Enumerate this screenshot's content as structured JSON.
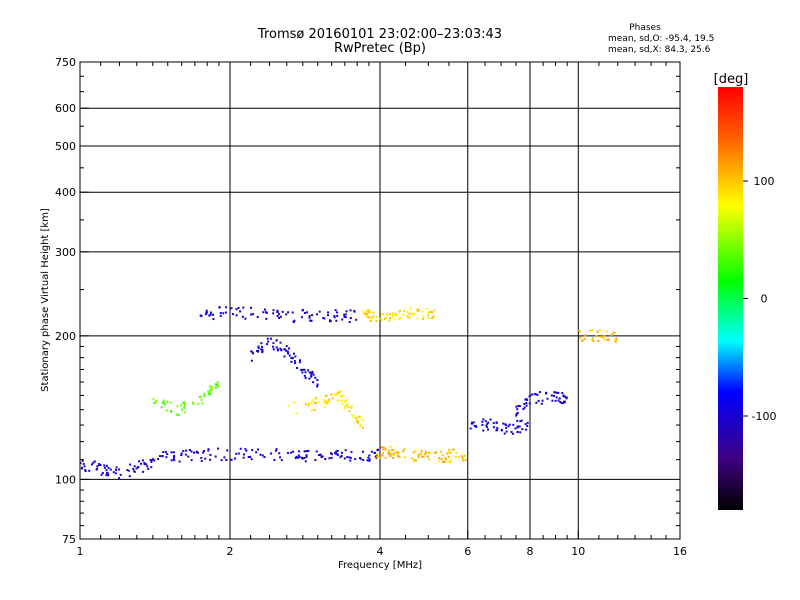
{
  "chart_data": {
    "type": "scatter",
    "title": "Tromsø 20160101 23:02:00–23:03:43",
    "subtitle": "RwPretec (Bp)",
    "xlabel": "Frequency [MHz]",
    "ylabel": "Stationary phase Virtual Height [km]",
    "x_scale": "log",
    "y_scale": "log",
    "xlim": [
      1,
      16
    ],
    "ylim": [
      75,
      750
    ],
    "x_ticks": [
      1,
      2,
      4,
      6,
      8,
      10,
      16
    ],
    "y_ticks": [
      75,
      100,
      200,
      300,
      400,
      500,
      600,
      750
    ],
    "x_grid": [
      2,
      4,
      6,
      8,
      10
    ],
    "y_grid": [
      100,
      200,
      300,
      400,
      500,
      600
    ],
    "grid": true,
    "stats": {
      "heading": "Phases",
      "line_o": "mean, sd,O: -95.4, 19.5",
      "line_x": "mean, sd,X:  84.3, 25.6"
    },
    "colorbar": {
      "label": "[deg]",
      "range": [
        -180,
        180
      ],
      "ticks": [
        100,
        0,
        -100
      ],
      "tick_labels": [
        "100",
        "0",
        "-100"
      ],
      "colors": [
        "#ff0000",
        "#ff8000",
        "#ffff00",
        "#00ff00",
        "#00ffff",
        "#0000ff",
        "#400080",
        "#000000"
      ]
    },
    "series": [
      {
        "traces": [
          {
            "x": [
              1.0,
              1.1,
              1.2,
              1.35,
              1.5,
              1.7,
              2.0,
              2.4,
              2.8,
              3.2,
              3.6,
              4.0
            ],
            "y": [
              108,
              105,
              103,
              107,
              112,
              112,
              113,
              113,
              112,
              112,
              112,
              112
            ],
            "phase": -100
          },
          {
            "x": [
              1.7,
              2.0,
              2.4,
              2.8,
              3.2,
              3.6
            ],
            "y": [
              222,
              224,
              221,
              220,
              220,
              220
            ],
            "phase": -100
          },
          {
            "x": [
              2.2,
              2.4,
              2.6,
              2.8,
              3.0
            ],
            "y": [
              180,
              195,
              185,
              170,
              160
            ],
            "phase": -95
          },
          {
            "x": [
              3.7,
              3.9,
              4.3,
              4.7,
              5.2
            ],
            "y": [
              220,
              221,
              222,
              222,
              221
            ],
            "phase": 100
          },
          {
            "x": [
              3.9,
              4.2,
              4.6,
              5.0,
              5.5,
              6.0
            ],
            "y": [
              113,
              114,
              112,
              112,
              112,
              113
            ],
            "phase": 110
          },
          {
            "x": [
              2.6,
              3.1,
              3.3,
              3.5,
              3.7
            ],
            "y": [
              140,
              145,
              150,
              140,
              130
            ],
            "phase": 100
          },
          {
            "x": [
              1.4,
              1.6,
              1.8,
              1.9
            ],
            "y": [
              145,
              140,
              150,
              160
            ],
            "phase": 40
          },
          {
            "x": [
              6.0,
              6.6,
              7.3,
              8.0
            ],
            "y": [
              130,
              130,
              128,
              130
            ],
            "phase": -100
          },
          {
            "x": [
              7.5,
              8.0,
              9.0,
              9.5
            ],
            "y": [
              140,
              148,
              148,
              148
            ],
            "phase": -100
          },
          {
            "x": [
              10.0,
              11.0,
              12.0
            ],
            "y": [
              201,
              200,
              200
            ],
            "phase": 110
          }
        ]
      }
    ]
  }
}
